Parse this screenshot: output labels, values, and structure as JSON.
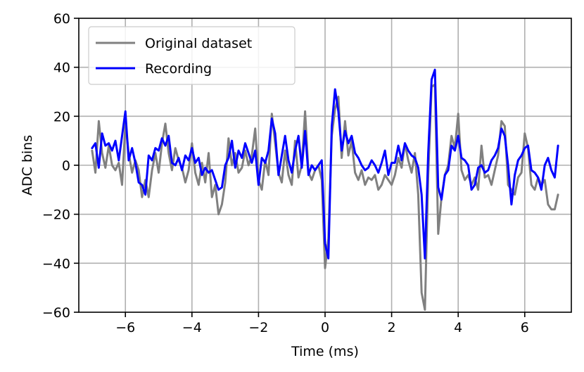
{
  "chart_data": {
    "type": "line",
    "xlabel": "Time (ms)",
    "ylabel": "ADC bins",
    "xlim": [
      -7.4,
      7.4
    ],
    "ylim": [
      -60,
      60
    ],
    "xticks": [
      -6,
      -4,
      -2,
      0,
      2,
      4,
      6
    ],
    "yticks": [
      -60,
      -40,
      -20,
      0,
      20,
      40,
      60
    ],
    "grid": true,
    "legend_position": "top-left",
    "series": [
      {
        "name": "Original dataset",
        "color": "#808080",
        "points": [
          [
            -7.0,
            6
          ],
          [
            -6.9,
            -3
          ],
          [
            -6.8,
            18
          ],
          [
            -6.7,
            5
          ],
          [
            -6.6,
            -1
          ],
          [
            -6.5,
            8
          ],
          [
            -6.4,
            0
          ],
          [
            -6.3,
            -2
          ],
          [
            -6.2,
            1
          ],
          [
            -6.1,
            -8
          ],
          [
            -6.0,
            17
          ],
          [
            -5.9,
            5
          ],
          [
            -5.8,
            -3
          ],
          [
            -5.7,
            2
          ],
          [
            -5.6,
            -2
          ],
          [
            -5.5,
            -13
          ],
          [
            -5.4,
            -6
          ],
          [
            -5.3,
            -13
          ],
          [
            -5.2,
            -2
          ],
          [
            -5.1,
            5
          ],
          [
            -5.0,
            -3
          ],
          [
            -4.9,
            9
          ],
          [
            -4.8,
            17
          ],
          [
            -4.7,
            5
          ],
          [
            -4.6,
            -2
          ],
          [
            -4.5,
            7
          ],
          [
            -4.4,
            2
          ],
          [
            -4.3,
            -1
          ],
          [
            -4.2,
            -7
          ],
          [
            -4.1,
            -2
          ],
          [
            -4.0,
            9
          ],
          [
            -3.9,
            -3
          ],
          [
            -3.8,
            -8
          ],
          [
            -3.7,
            1
          ],
          [
            -3.6,
            -7
          ],
          [
            -3.5,
            5
          ],
          [
            -3.4,
            -13
          ],
          [
            -3.3,
            -8
          ],
          [
            -3.2,
            -20
          ],
          [
            -3.1,
            -16
          ],
          [
            -3.0,
            -7
          ],
          [
            -2.9,
            11
          ],
          [
            -2.8,
            0
          ],
          [
            -2.7,
            5
          ],
          [
            -2.6,
            -3
          ],
          [
            -2.5,
            -1
          ],
          [
            -2.4,
            6
          ],
          [
            -2.3,
            0
          ],
          [
            -2.2,
            4
          ],
          [
            -2.1,
            15
          ],
          [
            -2.0,
            -6
          ],
          [
            -1.9,
            -10
          ],
          [
            -1.8,
            2
          ],
          [
            -1.7,
            -4
          ],
          [
            -1.6,
            21
          ],
          [
            -1.5,
            9
          ],
          [
            -1.4,
            -3
          ],
          [
            -1.3,
            -7
          ],
          [
            -1.2,
            6
          ],
          [
            -1.1,
            -4
          ],
          [
            -1.0,
            -8
          ],
          [
            -0.9,
            10
          ],
          [
            -0.8,
            -5
          ],
          [
            -0.7,
            0
          ],
          [
            -0.6,
            22
          ],
          [
            -0.5,
            -3
          ],
          [
            -0.4,
            -6
          ],
          [
            -0.3,
            -2
          ],
          [
            -0.2,
            0
          ],
          [
            -0.1,
            -6
          ],
          [
            0.0,
            -42
          ],
          [
            0.1,
            -30
          ],
          [
            0.2,
            12
          ],
          [
            0.3,
            23
          ],
          [
            0.4,
            28
          ],
          [
            0.5,
            3
          ],
          [
            0.6,
            18
          ],
          [
            0.7,
            4
          ],
          [
            0.8,
            10
          ],
          [
            0.9,
            -3
          ],
          [
            1.0,
            -6
          ],
          [
            1.1,
            -2
          ],
          [
            1.2,
            -8
          ],
          [
            1.3,
            -5
          ],
          [
            1.4,
            -6
          ],
          [
            1.5,
            -4
          ],
          [
            1.6,
            -10
          ],
          [
            1.7,
            -8
          ],
          [
            1.8,
            -4
          ],
          [
            1.9,
            -6
          ],
          [
            2.0,
            -8
          ],
          [
            2.1,
            -4
          ],
          [
            2.2,
            3
          ],
          [
            2.3,
            -1
          ],
          [
            2.4,
            9
          ],
          [
            2.5,
            2
          ],
          [
            2.6,
            -3
          ],
          [
            2.7,
            5
          ],
          [
            2.8,
            -12
          ],
          [
            2.9,
            -52
          ],
          [
            3.0,
            -59
          ],
          [
            3.1,
            -4
          ],
          [
            3.2,
            32
          ],
          [
            3.3,
            33
          ],
          [
            3.4,
            -28
          ],
          [
            3.5,
            -13
          ],
          [
            3.6,
            -4
          ],
          [
            3.7,
            0
          ],
          [
            3.8,
            12
          ],
          [
            3.9,
            7
          ],
          [
            4.0,
            21
          ],
          [
            4.1,
            -2
          ],
          [
            4.2,
            -6
          ],
          [
            4.3,
            -4
          ],
          [
            4.4,
            -8
          ],
          [
            4.5,
            -5
          ],
          [
            4.6,
            -10
          ],
          [
            4.7,
            8
          ],
          [
            4.8,
            -5
          ],
          [
            4.9,
            -4
          ],
          [
            5.0,
            -8
          ],
          [
            5.1,
            -2
          ],
          [
            5.2,
            4
          ],
          [
            5.3,
            18
          ],
          [
            5.4,
            16
          ],
          [
            5.5,
            -8
          ],
          [
            5.6,
            -10
          ],
          [
            5.7,
            -12
          ],
          [
            5.8,
            -5
          ],
          [
            5.9,
            -3
          ],
          [
            6.0,
            13
          ],
          [
            6.1,
            7
          ],
          [
            6.2,
            -8
          ],
          [
            6.3,
            -10
          ],
          [
            6.4,
            -5
          ],
          [
            6.5,
            -8
          ],
          [
            6.6,
            -6
          ],
          [
            6.7,
            -16
          ],
          [
            6.8,
            -18
          ],
          [
            6.9,
            -18
          ],
          [
            7.0,
            -12
          ]
        ]
      },
      {
        "name": "Recording",
        "color": "#0000ff",
        "points": [
          [
            -7.0,
            7
          ],
          [
            -6.9,
            9
          ],
          [
            -6.8,
            -1
          ],
          [
            -6.7,
            13
          ],
          [
            -6.6,
            8
          ],
          [
            -6.5,
            9
          ],
          [
            -6.4,
            6
          ],
          [
            -6.3,
            10
          ],
          [
            -6.2,
            2
          ],
          [
            -6.1,
            12
          ],
          [
            -6.0,
            22
          ],
          [
            -5.9,
            2
          ],
          [
            -5.8,
            7
          ],
          [
            -5.7,
            1
          ],
          [
            -5.6,
            -7
          ],
          [
            -5.5,
            -8
          ],
          [
            -5.4,
            -12
          ],
          [
            -5.3,
            4
          ],
          [
            -5.2,
            2
          ],
          [
            -5.1,
            7
          ],
          [
            -5.0,
            6
          ],
          [
            -4.9,
            11
          ],
          [
            -4.8,
            8
          ],
          [
            -4.7,
            12
          ],
          [
            -4.6,
            1
          ],
          [
            -4.5,
            0
          ],
          [
            -4.4,
            3
          ],
          [
            -4.3,
            -2
          ],
          [
            -4.2,
            4
          ],
          [
            -4.1,
            2
          ],
          [
            -4.0,
            7
          ],
          [
            -3.9,
            1
          ],
          [
            -3.8,
            3
          ],
          [
            -3.7,
            -4
          ],
          [
            -3.6,
            -1
          ],
          [
            -3.5,
            -3
          ],
          [
            -3.4,
            -2
          ],
          [
            -3.3,
            -6
          ],
          [
            -3.2,
            -10
          ],
          [
            -3.1,
            -9
          ],
          [
            -3.0,
            0
          ],
          [
            -2.9,
            3
          ],
          [
            -2.8,
            10
          ],
          [
            -2.7,
            -1
          ],
          [
            -2.6,
            6
          ],
          [
            -2.5,
            3
          ],
          [
            -2.4,
            9
          ],
          [
            -2.3,
            5
          ],
          [
            -2.2,
            1
          ],
          [
            -2.1,
            6
          ],
          [
            -2.0,
            -8
          ],
          [
            -1.9,
            3
          ],
          [
            -1.8,
            1
          ],
          [
            -1.7,
            6
          ],
          [
            -1.6,
            19
          ],
          [
            -1.5,
            13
          ],
          [
            -1.4,
            -4
          ],
          [
            -1.3,
            4
          ],
          [
            -1.2,
            12
          ],
          [
            -1.1,
            2
          ],
          [
            -1.0,
            -3
          ],
          [
            -0.9,
            6
          ],
          [
            -0.8,
            12
          ],
          [
            -0.7,
            -1
          ],
          [
            -0.6,
            14
          ],
          [
            -0.5,
            -4
          ],
          [
            -0.4,
            0
          ],
          [
            -0.3,
            -2
          ],
          [
            -0.2,
            0
          ],
          [
            -0.1,
            2
          ],
          [
            0.0,
            -32
          ],
          [
            0.1,
            -38
          ],
          [
            0.2,
            16
          ],
          [
            0.3,
            31
          ],
          [
            0.4,
            22
          ],
          [
            0.5,
            6
          ],
          [
            0.6,
            14
          ],
          [
            0.7,
            9
          ],
          [
            0.8,
            12
          ],
          [
            0.9,
            5
          ],
          [
            1.0,
            3
          ],
          [
            1.1,
            0
          ],
          [
            1.2,
            -2
          ],
          [
            1.3,
            -1
          ],
          [
            1.4,
            2
          ],
          [
            1.5,
            0
          ],
          [
            1.6,
            -3
          ],
          [
            1.7,
            1
          ],
          [
            1.8,
            6
          ],
          [
            1.9,
            -4
          ],
          [
            2.0,
            1
          ],
          [
            2.1,
            1
          ],
          [
            2.2,
            8
          ],
          [
            2.3,
            2
          ],
          [
            2.4,
            9
          ],
          [
            2.5,
            6
          ],
          [
            2.6,
            4
          ],
          [
            2.7,
            3
          ],
          [
            2.8,
            -1
          ],
          [
            2.9,
            -12
          ],
          [
            3.0,
            -38
          ],
          [
            3.1,
            5
          ],
          [
            3.2,
            35
          ],
          [
            3.3,
            39
          ],
          [
            3.4,
            -9
          ],
          [
            3.5,
            -14
          ],
          [
            3.6,
            -4
          ],
          [
            3.7,
            -2
          ],
          [
            3.8,
            8
          ],
          [
            3.9,
            6
          ],
          [
            4.0,
            12
          ],
          [
            4.1,
            3
          ],
          [
            4.2,
            2
          ],
          [
            4.3,
            0
          ],
          [
            4.4,
            -10
          ],
          [
            4.5,
            -8
          ],
          [
            4.6,
            -1
          ],
          [
            4.7,
            0
          ],
          [
            4.8,
            -3
          ],
          [
            4.9,
            -2
          ],
          [
            5.0,
            2
          ],
          [
            5.1,
            4
          ],
          [
            5.2,
            7
          ],
          [
            5.3,
            15
          ],
          [
            5.4,
            12
          ],
          [
            5.5,
            0
          ],
          [
            5.6,
            -16
          ],
          [
            5.7,
            -4
          ],
          [
            5.8,
            2
          ],
          [
            5.9,
            4
          ],
          [
            6.0,
            7
          ],
          [
            6.1,
            8
          ],
          [
            6.2,
            -2
          ],
          [
            6.3,
            -3
          ],
          [
            6.4,
            -5
          ],
          [
            6.5,
            -10
          ],
          [
            6.6,
            0
          ],
          [
            6.7,
            3
          ],
          [
            6.8,
            -2
          ],
          [
            6.9,
            -5
          ],
          [
            7.0,
            8
          ]
        ]
      }
    ]
  }
}
